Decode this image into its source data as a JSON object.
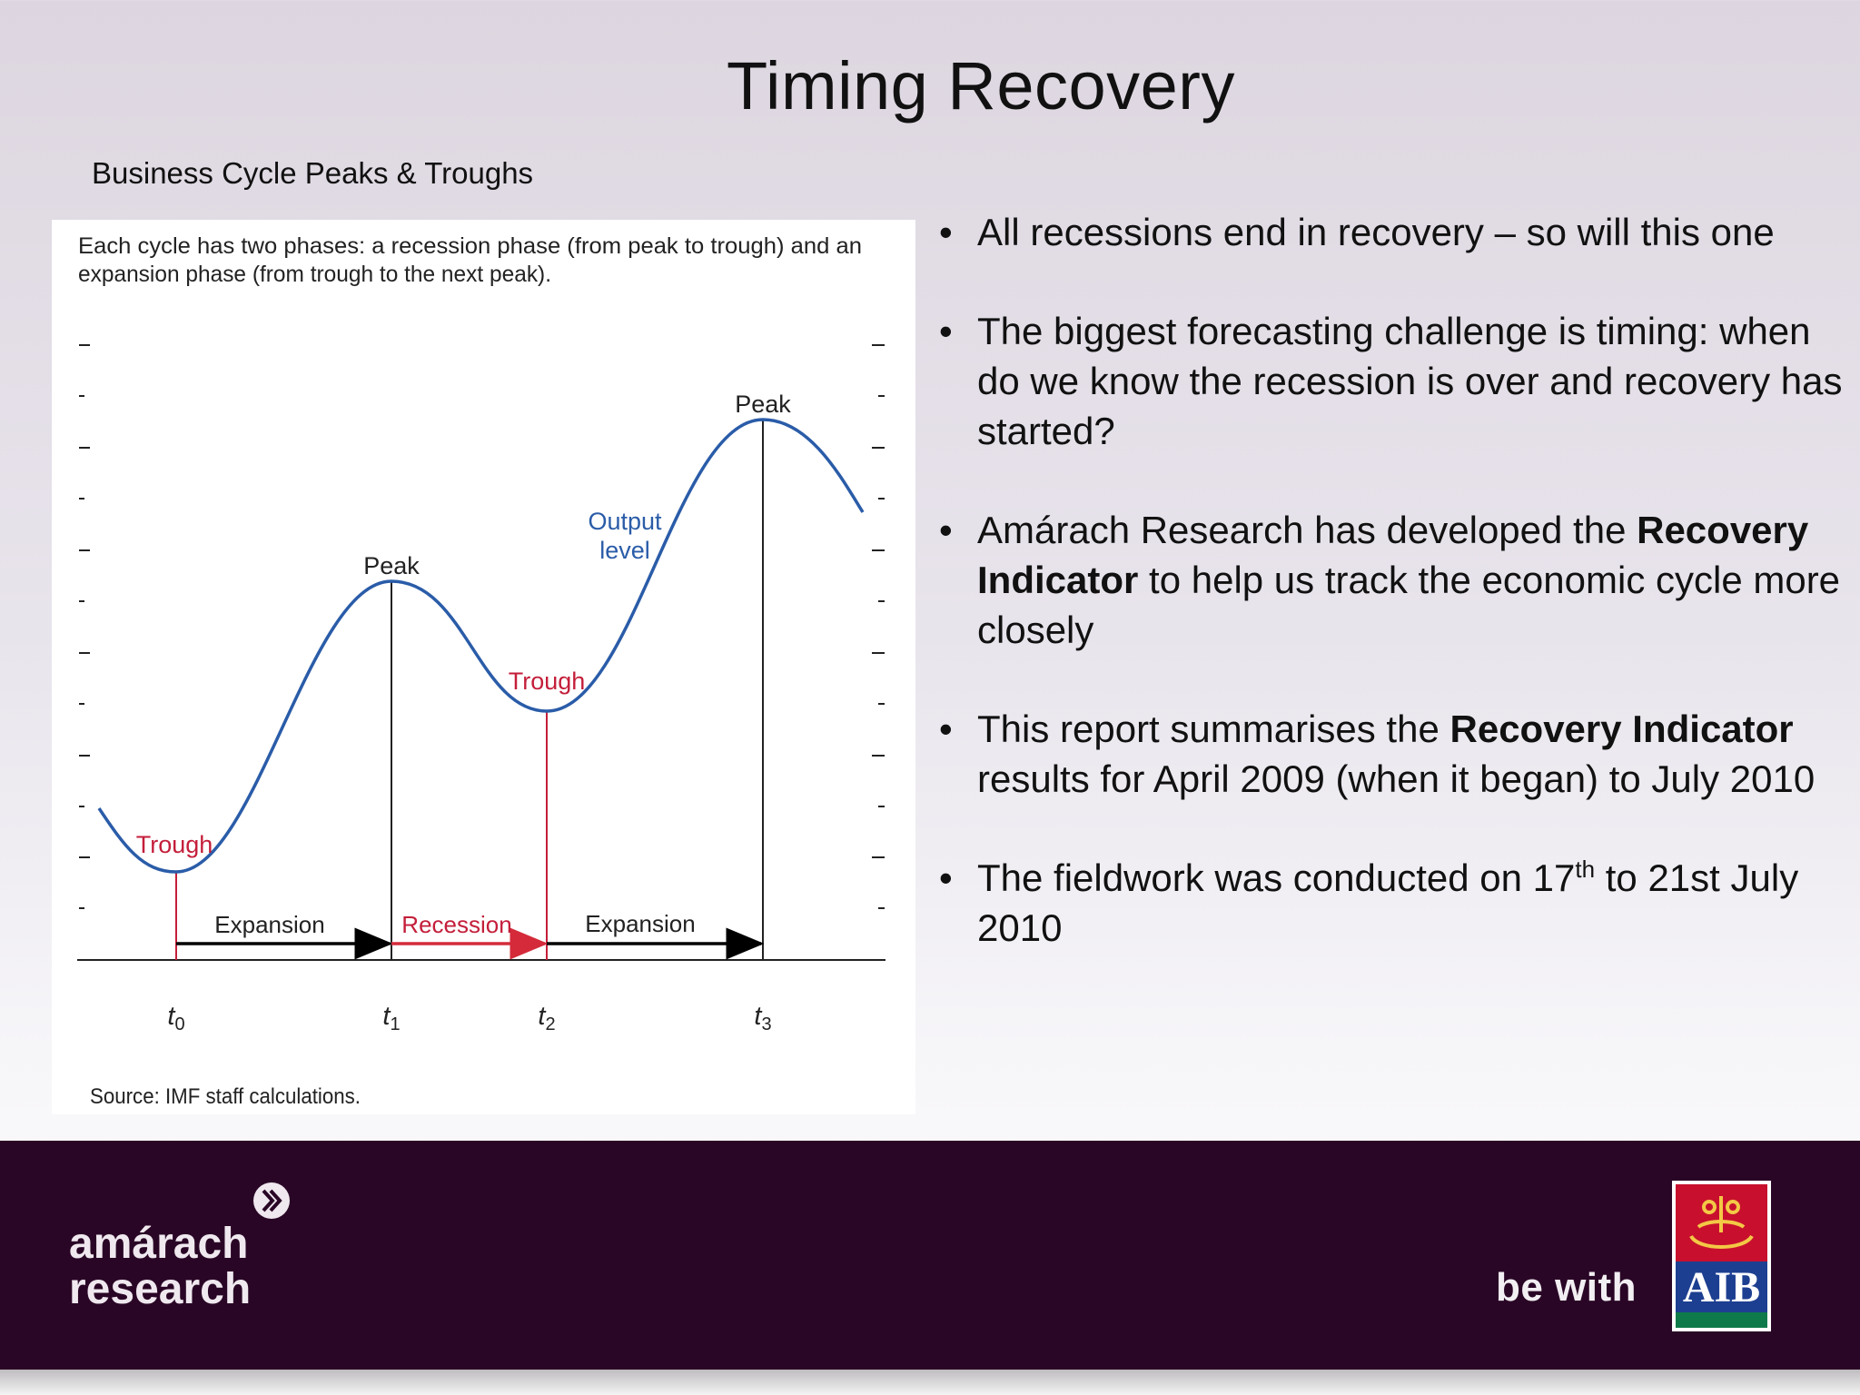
{
  "slide": {
    "title": "Timing Recovery",
    "chart_caption": "Business Cycle Peaks & Troughs"
  },
  "figure": {
    "intro_line1": "Each cycle has two phases: a recession phase (from peak to trough) and an",
    "intro_line2": "expansion phase (from trough to the next peak).",
    "curve_label_line1": "Output",
    "curve_label_line2": "level",
    "point_labels": [
      "Trough",
      "Peak",
      "Trough",
      "Peak"
    ],
    "phase_labels": [
      "Expansion",
      "Recession",
      "Expansion"
    ],
    "time_labels": [
      {
        "base": "t",
        "sub": "0"
      },
      {
        "base": "t",
        "sub": "1"
      },
      {
        "base": "t",
        "sub": "2"
      },
      {
        "base": "t",
        "sub": "3"
      }
    ],
    "source": "Source: IMF staff calculations.",
    "colors": {
      "curve": "#2a5ca8",
      "trough": "#c41e3a",
      "peak": "#222222",
      "recession_arrow": "#d42a3a",
      "expansion_arrow": "#000000"
    }
  },
  "bullets": [
    {
      "segments": [
        {
          "text": "All recessions end in recovery – so will this one",
          "bold": false
        }
      ]
    },
    {
      "segments": [
        {
          "text": "The biggest forecasting challenge is timing: when do we know the recession is over and recovery has started?",
          "bold": false
        }
      ]
    },
    {
      "segments": [
        {
          "text": "Amárach Research has developed the ",
          "bold": false
        },
        {
          "text": "Recovery Indicator",
          "bold": true
        },
        {
          "text": " to help us track the economic cycle more closely",
          "bold": false
        }
      ]
    },
    {
      "segments": [
        {
          "text": "This report summarises the ",
          "bold": false
        },
        {
          "text": "Recovery Indicator",
          "bold": true
        },
        {
          "text": " results for April 2009 (when it began) to July 2010",
          "bold": false
        }
      ]
    },
    {
      "segments": [
        {
          "text": "The fieldwork was conducted on 17",
          "bold": false
        },
        {
          "text": "th",
          "sup": true
        },
        {
          "text": " to 21st July 2010",
          "bold": false
        }
      ]
    }
  ],
  "footer": {
    "brand_line1": "amárach",
    "brand_line2": "research",
    "tagline": "be with",
    "bank_logo_text": "AIB",
    "colors": {
      "band": "#2a0626",
      "aib_red": "#c8102e",
      "aib_blue": "#1d3f91",
      "aib_green": "#0e7a4a"
    }
  }
}
